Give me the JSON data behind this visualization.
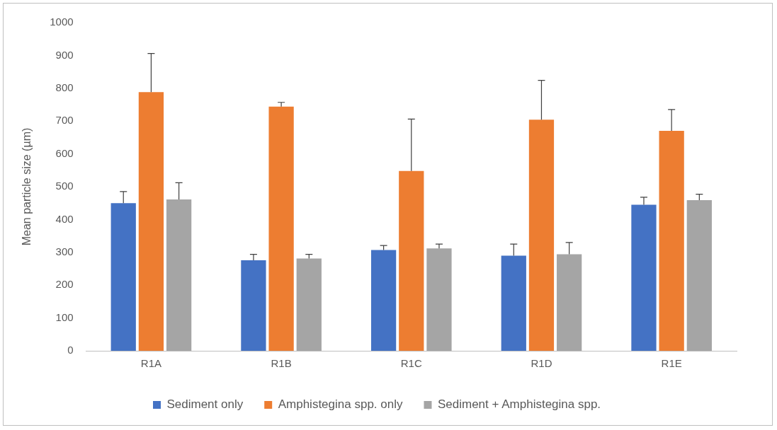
{
  "chart_data": {
    "type": "bar",
    "ylabel": "Mean particle size (µm)",
    "categories": [
      "R1A",
      "R1B",
      "R1C",
      "R1D",
      "R1E"
    ],
    "series": [
      {
        "name": "Sediment only",
        "color": "#4472c4",
        "values": [
          450,
          276,
          307,
          290,
          445
        ],
        "errors": [
          [
            450,
            485
          ],
          [
            276,
            294
          ],
          [
            307,
            321
          ],
          [
            290,
            325
          ],
          [
            445,
            468
          ]
        ]
      },
      {
        "name": "Amphistegina spp. only",
        "color": "#ed7d31",
        "values": [
          788,
          744,
          548,
          704,
          670
        ],
        "errors": [
          [
            788,
            906
          ],
          [
            744,
            757
          ],
          [
            548,
            706
          ],
          [
            704,
            824
          ],
          [
            670,
            735
          ]
        ]
      },
      {
        "name": "Sediment + Amphistegina spp.",
        "color": "#a5a5a5",
        "values": [
          461,
          281,
          312,
          294,
          459
        ],
        "errors": [
          [
            461,
            512
          ],
          [
            281,
            294
          ],
          [
            312,
            325
          ],
          [
            294,
            330
          ],
          [
            459,
            477
          ]
        ]
      }
    ],
    "ylim": [
      0,
      1000
    ],
    "yticks": [
      0,
      100,
      200,
      300,
      400,
      500,
      600,
      700,
      800,
      900,
      1000
    ],
    "grid": false,
    "legend": "bottom"
  }
}
